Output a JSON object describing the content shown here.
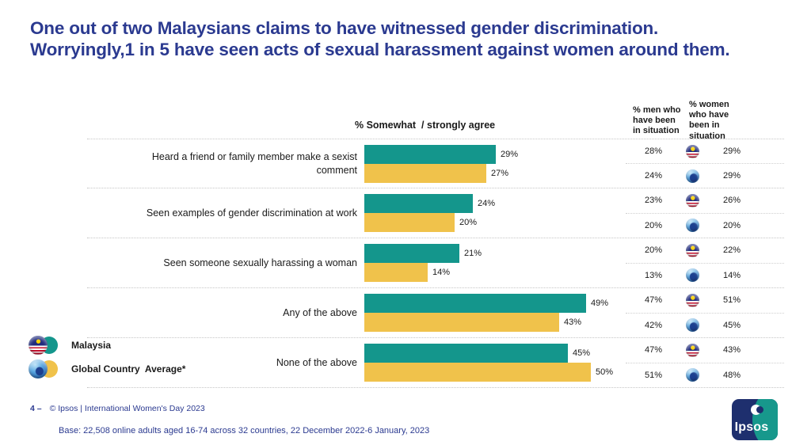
{
  "title": "One out of two Malaysians claims to have witnessed gender discrimination. Worryingly,1 in 5 have seen acts of sexual harassment against women around them.",
  "colors": {
    "title_blue": "#2B3A90",
    "malaysia_teal": "#14968C",
    "global_yellow": "#F0C24B",
    "logo_navy": "#1E2F6E",
    "logo_teal": "#17988C"
  },
  "chart_data": {
    "type": "bar",
    "orientation": "horizontal",
    "title": "% Somewhat  / strongly agree",
    "stat_headers": [
      "% men who have been in situation",
      "% women who have been in situation"
    ],
    "categories": [
      "Heard a friend or family member make a sexist comment",
      "Seen examples of gender discrimination at work",
      "Seen someone sexually harassing a woman",
      "Any of the above",
      "None of the above"
    ],
    "series": [
      {
        "name": "Malaysia",
        "color": "#14968C",
        "values": [
          29,
          24,
          21,
          49,
          45
        ],
        "men": [
          28,
          23,
          20,
          47,
          47
        ],
        "women": [
          29,
          26,
          22,
          51,
          43
        ]
      },
      {
        "name": "Global Country Average*",
        "color": "#F0C24B",
        "values": [
          27,
          20,
          14,
          43,
          50
        ],
        "men": [
          24,
          20,
          13,
          42,
          51
        ],
        "women": [
          29,
          20,
          14,
          45,
          48
        ]
      }
    ],
    "unit": "%",
    "xlim": [
      0,
      52
    ],
    "grid": "dotted row separators",
    "legend_position": "bottom-left"
  },
  "legend": [
    {
      "label": "Malaysia",
      "icon": "malaysia-flag",
      "color": "#14968C"
    },
    {
      "label": "Global Country  Average*",
      "icon": "globe",
      "color": "#F0C24B"
    }
  ],
  "footer": {
    "page": "4 –",
    "credit": "© Ipsos | International Women's Day 2023",
    "base": "Base: 22,508 online adults aged 16-74 across 32 countries, 22 December 2022-6 January, 2023"
  },
  "logo": {
    "text": "Ipsos"
  }
}
